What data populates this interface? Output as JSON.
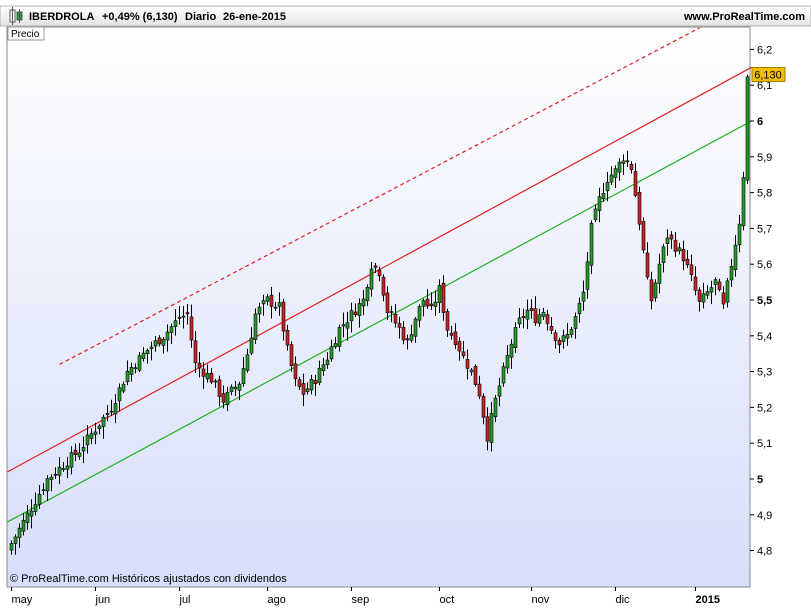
{
  "header": {
    "symbol": "IBERDROLA",
    "change": "+0,49% (6,130)",
    "period": "Diario",
    "date": "26-ene-2015",
    "site": "www.ProRealTime.com"
  },
  "panel_label": "Precio",
  "footer": "© ProRealTime.com Históricos ajustados con dividendos",
  "price_badge": "6,130",
  "colors": {
    "up": "#20a020",
    "down": "#d02020",
    "resistance": "#e02020",
    "support": "#20b020",
    "badge": "#f0c000"
  },
  "chart_data": {
    "type": "candlestick",
    "title": "",
    "y_ticks": [
      {
        "value": 6.2,
        "label": "6,2"
      },
      {
        "value": 6.1,
        "label": "6,1"
      },
      {
        "value": 6.0,
        "label": "6",
        "bold": true
      },
      {
        "value": 5.9,
        "label": "5,9"
      },
      {
        "value": 5.8,
        "label": "5,8"
      },
      {
        "value": 5.7,
        "label": "5,7"
      },
      {
        "value": 5.6,
        "label": "5,6"
      },
      {
        "value": 5.5,
        "label": "5,5",
        "bold": true
      },
      {
        "value": 5.4,
        "label": "5,4"
      },
      {
        "value": 5.3,
        "label": "5,3"
      },
      {
        "value": 5.2,
        "label": "5,2"
      },
      {
        "value": 5.1,
        "label": "5,1"
      },
      {
        "value": 5.0,
        "label": "5",
        "bold": true
      },
      {
        "value": 4.9,
        "label": "4,9"
      },
      {
        "value": 4.8,
        "label": "4,8"
      }
    ],
    "ylim": [
      4.72,
      6.3
    ],
    "x_ticks": [
      {
        "index": 0,
        "label": "may"
      },
      {
        "index": 21,
        "label": "jun"
      },
      {
        "index": 42,
        "label": "jul"
      },
      {
        "index": 64,
        "label": "ago"
      },
      {
        "index": 85,
        "label": "sep"
      },
      {
        "index": 107,
        "label": "oct"
      },
      {
        "index": 130,
        "label": "nov"
      },
      {
        "index": 151,
        "label": "dic"
      },
      {
        "index": 171,
        "label": "2015",
        "bold": true
      }
    ],
    "bar_count": 185,
    "anchors": [
      [
        0,
        4.82
      ],
      [
        5,
        4.92
      ],
      [
        9,
        5.0
      ],
      [
        13,
        5.04
      ],
      [
        17,
        5.08
      ],
      [
        21,
        5.14
      ],
      [
        25,
        5.2
      ],
      [
        29,
        5.3
      ],
      [
        34,
        5.36
      ],
      [
        38,
        5.4
      ],
      [
        42,
        5.45
      ],
      [
        44,
        5.46
      ],
      [
        46,
        5.32
      ],
      [
        50,
        5.28
      ],
      [
        53,
        5.22
      ],
      [
        57,
        5.27
      ],
      [
        59,
        5.35
      ],
      [
        61,
        5.46
      ],
      [
        64,
        5.5
      ],
      [
        67,
        5.48
      ],
      [
        69,
        5.36
      ],
      [
        71,
        5.27
      ],
      [
        73,
        5.24
      ],
      [
        76,
        5.28
      ],
      [
        79,
        5.34
      ],
      [
        82,
        5.42
      ],
      [
        85,
        5.46
      ],
      [
        88,
        5.5
      ],
      [
        90,
        5.6
      ],
      [
        92,
        5.58
      ],
      [
        94,
        5.47
      ],
      [
        97,
        5.42
      ],
      [
        99,
        5.38
      ],
      [
        101,
        5.45
      ],
      [
        103,
        5.5
      ],
      [
        105,
        5.47
      ],
      [
        107,
        5.53
      ],
      [
        109,
        5.42
      ],
      [
        111,
        5.39
      ],
      [
        113,
        5.34
      ],
      [
        115,
        5.3
      ],
      [
        117,
        5.24
      ],
      [
        119,
        5.12
      ],
      [
        121,
        5.22
      ],
      [
        123,
        5.3
      ],
      [
        125,
        5.38
      ],
      [
        127,
        5.44
      ],
      [
        129,
        5.47
      ],
      [
        131,
        5.45
      ],
      [
        133,
        5.47
      ],
      [
        135,
        5.42
      ],
      [
        137,
        5.38
      ],
      [
        139,
        5.4
      ],
      [
        141,
        5.45
      ],
      [
        143,
        5.52
      ],
      [
        145,
        5.7
      ],
      [
        147,
        5.78
      ],
      [
        149,
        5.84
      ],
      [
        151,
        5.86
      ],
      [
        153,
        5.9
      ],
      [
        155,
        5.87
      ],
      [
        157,
        5.72
      ],
      [
        159,
        5.55
      ],
      [
        160,
        5.5
      ],
      [
        162,
        5.6
      ],
      [
        164,
        5.68
      ],
      [
        166,
        5.65
      ],
      [
        168,
        5.62
      ],
      [
        170,
        5.56
      ],
      [
        172,
        5.49
      ],
      [
        174,
        5.52
      ],
      [
        176,
        5.55
      ],
      [
        178,
        5.48
      ],
      [
        180,
        5.6
      ],
      [
        182,
        5.72
      ],
      [
        183,
        5.85
      ],
      [
        184,
        6.12
      ]
    ],
    "trendlines": [
      {
        "name": "",
        "style": "solid",
        "color": "resistance",
        "from": {
          "index": -1,
          "value": 5.02
        },
        "to": {
          "index": 185,
          "value": 6.15
        }
      },
      {
        "name": "",
        "style": "solid",
        "color": "support",
        "from": {
          "index": -1,
          "value": 4.88
        },
        "to": {
          "index": 185,
          "value": 6.0
        }
      },
      {
        "name": "",
        "style": "dashed",
        "color": "resistance",
        "from": {
          "index": 12,
          "value": 5.32
        },
        "to": {
          "index": 172,
          "value": 6.26
        }
      }
    ],
    "grid": false,
    "legend": "none"
  }
}
